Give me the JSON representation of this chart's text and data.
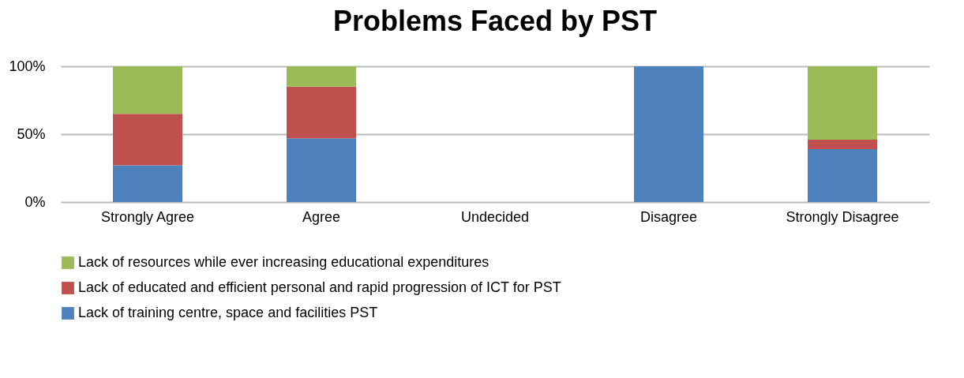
{
  "chart_data": {
    "type": "bar",
    "title": "Problems Faced by PST",
    "stacked": true,
    "categories": [
      "Strongly Agree",
      "Agree",
      "Undecided",
      "Disagree",
      "Strongly Disagree"
    ],
    "series": [
      {
        "name": "Lack of training centre, space and facilities PST",
        "color": "#4f81bd",
        "values": [
          27,
          47,
          0,
          100,
          39
        ]
      },
      {
        "name": "Lack of educated and efficient personal and rapid progression of ICT for PST",
        "color": "#c0504d",
        "values": [
          38,
          38,
          0,
          0,
          7
        ]
      },
      {
        "name": "Lack of resources while ever increasing educational expenditures",
        "color": "#9bbb59",
        "values": [
          35,
          15,
          0,
          0,
          54
        ]
      }
    ],
    "ylim": [
      0,
      100
    ],
    "yticks": [
      {
        "value": 0,
        "label": "0%"
      },
      {
        "value": 50,
        "label": "50%"
      },
      {
        "value": 100,
        "label": "100%"
      }
    ],
    "grid": "y",
    "legend": "bottom"
  }
}
